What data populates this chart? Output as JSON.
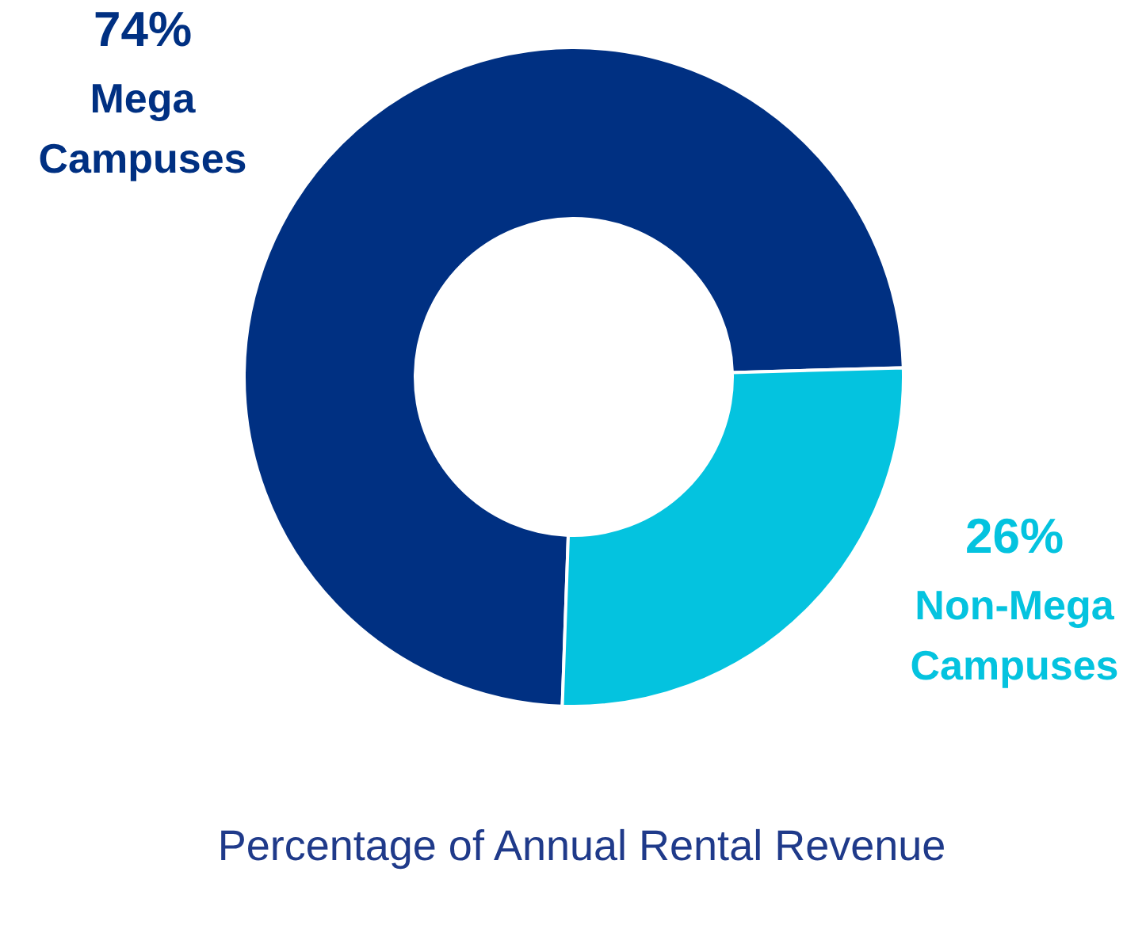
{
  "chart_data": {
    "type": "donut",
    "title": "Percentage of Annual Rental Revenue",
    "categories": [
      "Mega Campuses",
      "Non-Mega Campuses"
    ],
    "values": [
      74,
      26
    ],
    "value_labels": [
      "74%",
      "26%"
    ],
    "colors": [
      "#003082",
      "#04c3df"
    ]
  }
}
